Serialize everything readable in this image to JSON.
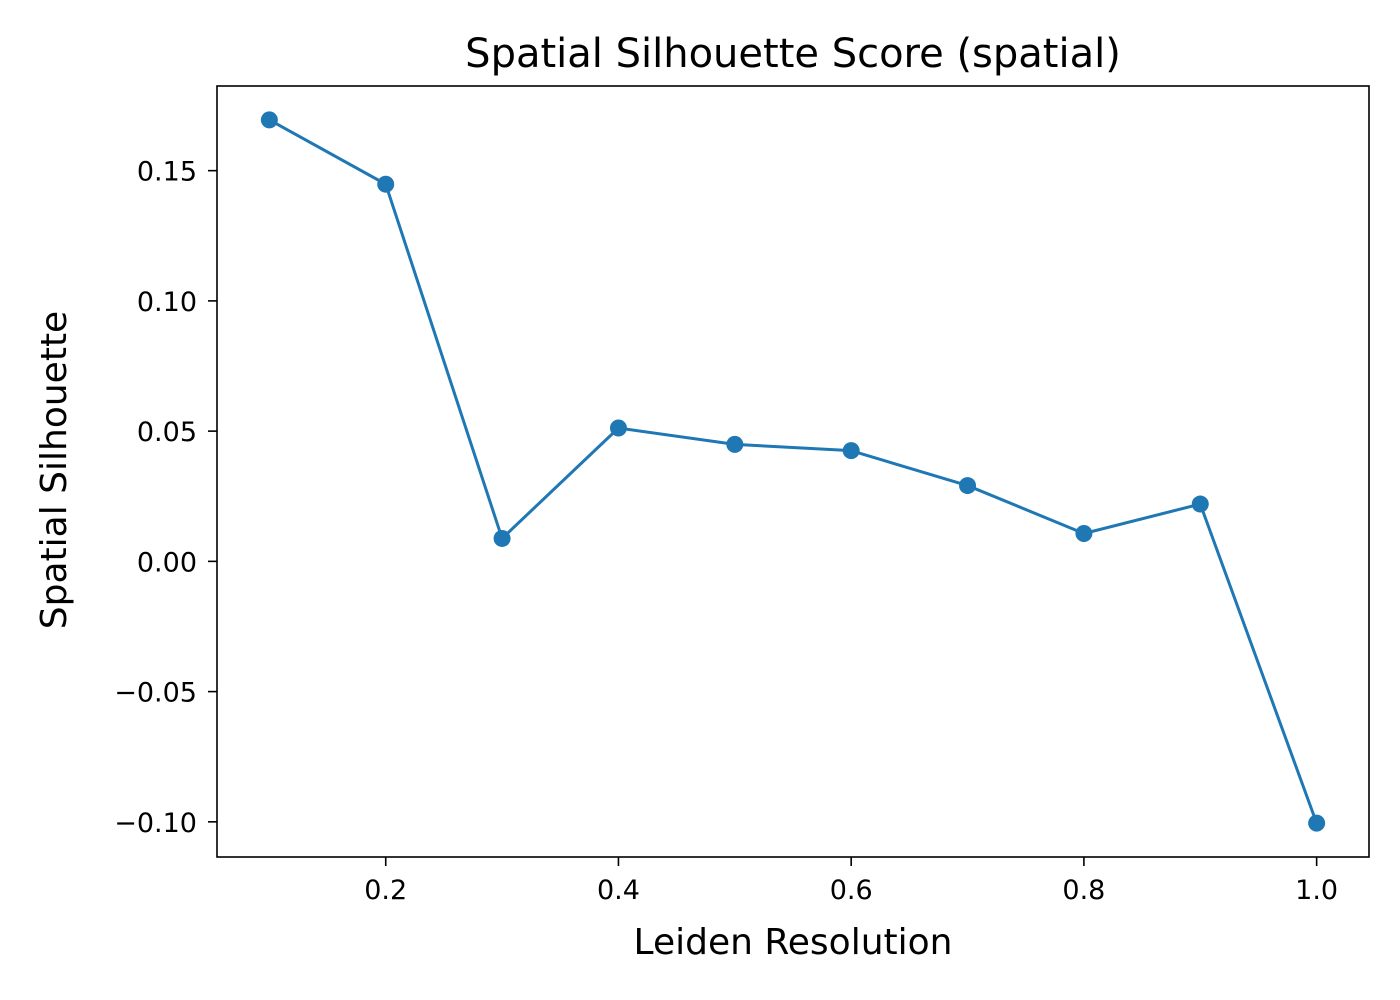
{
  "chart_data": {
    "type": "line",
    "title": "Spatial Silhouette Score (spatial)",
    "xlabel": "Leiden Resolution",
    "ylabel": "Spatial Silhouette",
    "xlim": [
      0.055,
      1.045
    ],
    "ylim": [
      -0.1135,
      0.1825
    ],
    "xticks": [
      0.2,
      0.4,
      0.6,
      0.8,
      1.0
    ],
    "xtick_labels": [
      "0.2",
      "0.4",
      "0.6",
      "0.8",
      "1.0"
    ],
    "yticks": [
      -0.1,
      -0.05,
      0.0,
      0.05,
      0.1,
      0.15
    ],
    "ytick_labels": [
      "−0.10",
      "−0.05",
      "0.00",
      "0.05",
      "0.10",
      "0.15"
    ],
    "grid": false,
    "series": [
      {
        "color": "#1f77b4",
        "marker": "circle",
        "x": [
          0.1,
          0.2,
          0.3,
          0.4,
          0.5,
          0.6,
          0.7,
          0.8,
          0.9,
          1.0
        ],
        "y": [
          0.1695,
          0.1448,
          0.0088,
          0.0512,
          0.0449,
          0.0425,
          0.0291,
          0.0107,
          0.022,
          -0.1005
        ]
      }
    ]
  }
}
